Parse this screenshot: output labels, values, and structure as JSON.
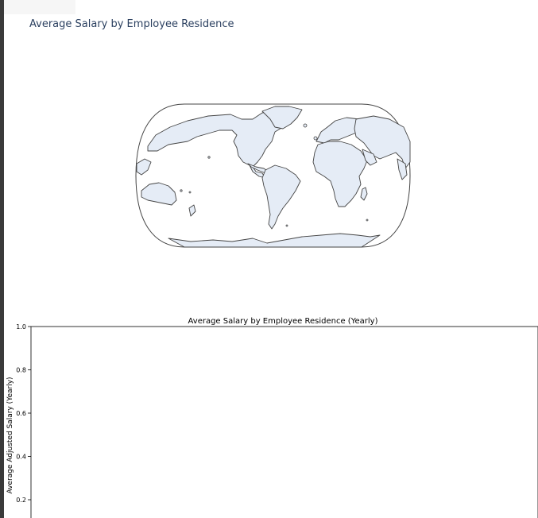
{
  "map_figure": {
    "title": "Average Salary by Employee Residence",
    "land_color": "#e5ecf6",
    "coast_color": "#444444"
  },
  "chart_data": [
    {
      "type": "bar",
      "title": "Average Salary by Employee Residence (Yearly)",
      "xlabel": "",
      "ylabel": "Average Adjusted Salary (Yearly)",
      "categories": [],
      "values": [],
      "ylim": [
        0,
        1.0
      ],
      "yticks": [
        "0.2",
        "0.4",
        "0.6",
        "0.8",
        "1.0"
      ],
      "grid": false
    }
  ]
}
